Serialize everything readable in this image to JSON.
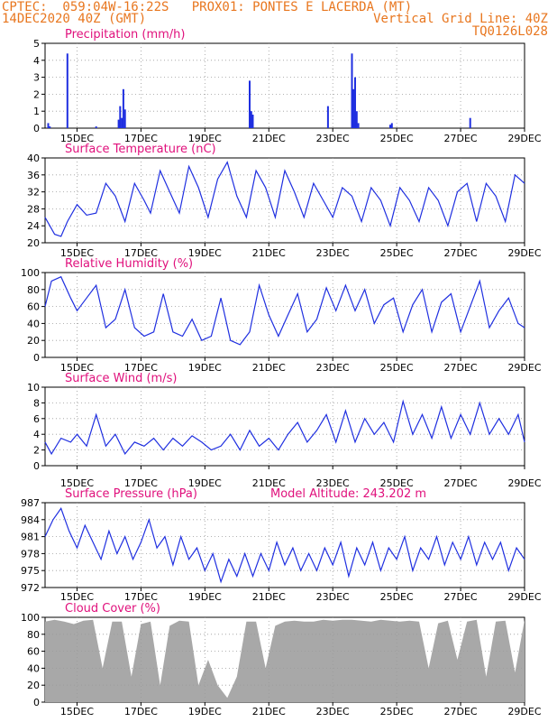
{
  "header": {
    "line1_left": "CPTEC:  059:04W-16:22S   PROX01: PONTES E LACERDA (MT)",
    "line2_left": "14DEC2020 40Z (GMT)",
    "line2_right": "Vertical Grid Line: 40Z",
    "line3_right": "TQ0126L028"
  },
  "colors": {
    "header": "#e8761e",
    "title": "#e0107c",
    "line": "#1f2fe0",
    "bar": "#1f2fe0",
    "cloud": "#a8a8a8",
    "grid": "#9a9a9a"
  },
  "x_axis": {
    "tick_labels": [
      "15DEC",
      "17DEC",
      "19DEC",
      "21DEC",
      "23DEC",
      "25DEC",
      "27DEC",
      "29DEC"
    ],
    "tick_days": [
      15,
      17,
      19,
      21,
      23,
      25,
      27,
      29
    ],
    "range_days": [
      14.0,
      29.0
    ]
  },
  "chart_data": [
    {
      "type": "bar",
      "title": "Precipitation (mm/h)",
      "ylim": [
        0,
        5
      ],
      "yticks": [
        "0",
        "1",
        "2",
        "3",
        "4",
        "5"
      ],
      "x": [
        14.1,
        14.15,
        14.7,
        15.6,
        16.3,
        16.35,
        16.4,
        16.45,
        16.5,
        20.4,
        20.45,
        20.5,
        22.85,
        23.6,
        23.65,
        23.7,
        23.75,
        23.8,
        24.8,
        24.85,
        27.3
      ],
      "values": [
        0.3,
        0.1,
        4.4,
        0.1,
        0.5,
        1.3,
        0.6,
        2.3,
        1.1,
        2.8,
        1.0,
        0.8,
        1.3,
        4.4,
        2.3,
        3.0,
        1.0,
        0.3,
        0.2,
        0.3,
        0.6
      ]
    },
    {
      "type": "line",
      "title": "Surface Temperature (nC)",
      "ylim": [
        20,
        40
      ],
      "yticks": [
        "20",
        "24",
        "28",
        "32",
        "36",
        "40"
      ],
      "x": [
        14.0,
        14.3,
        14.5,
        14.7,
        15.0,
        15.3,
        15.6,
        15.9,
        16.2,
        16.5,
        16.8,
        17.1,
        17.3,
        17.6,
        17.9,
        18.2,
        18.5,
        18.8,
        19.1,
        19.4,
        19.7,
        20.0,
        20.3,
        20.6,
        20.9,
        21.2,
        21.5,
        21.8,
        22.1,
        22.4,
        22.7,
        23.0,
        23.3,
        23.6,
        23.9,
        24.2,
        24.5,
        24.8,
        25.1,
        25.4,
        25.7,
        26.0,
        26.3,
        26.6,
        26.9,
        27.2,
        27.5,
        27.8,
        28.1,
        28.4,
        28.7,
        29.0
      ],
      "values": [
        26,
        22,
        21.5,
        25,
        29,
        26.5,
        27,
        34,
        31,
        25,
        34,
        30,
        27,
        37,
        32,
        27,
        38,
        33,
        26,
        35,
        39,
        31,
        26,
        37,
        33,
        26,
        37,
        32,
        26,
        34,
        30,
        26,
        33,
        31,
        25,
        33,
        30,
        24,
        33,
        30,
        25,
        33,
        30,
        24,
        32,
        34,
        25,
        34,
        31,
        25,
        36,
        34
      ]
    },
    {
      "type": "line",
      "title": "Relative Humidity (%)",
      "ylim": [
        0,
        100
      ],
      "yticks": [
        "0",
        "20",
        "40",
        "60",
        "80",
        "100"
      ],
      "x": [
        14.0,
        14.2,
        14.5,
        14.8,
        15.0,
        15.3,
        15.6,
        15.9,
        16.2,
        16.5,
        16.8,
        17.1,
        17.4,
        17.7,
        18.0,
        18.3,
        18.6,
        18.9,
        19.2,
        19.5,
        19.8,
        20.1,
        20.4,
        20.7,
        21.0,
        21.3,
        21.6,
        21.9,
        22.2,
        22.5,
        22.8,
        23.1,
        23.4,
        23.7,
        24.0,
        24.3,
        24.6,
        24.9,
        25.2,
        25.5,
        25.8,
        26.1,
        26.4,
        26.7,
        27.0,
        27.3,
        27.6,
        27.9,
        28.2,
        28.5,
        28.8,
        29.0
      ],
      "values": [
        60,
        90,
        95,
        70,
        55,
        70,
        85,
        35,
        45,
        80,
        35,
        25,
        30,
        75,
        30,
        25,
        45,
        20,
        25,
        70,
        20,
        15,
        30,
        85,
        50,
        25,
        50,
        75,
        30,
        45,
        82,
        55,
        85,
        55,
        80,
        40,
        62,
        70,
        30,
        62,
        80,
        30,
        65,
        75,
        30,
        60,
        90,
        35,
        55,
        70,
        40,
        35
      ]
    },
    {
      "type": "line",
      "title": "Surface Wind (m/s)",
      "ylim": [
        0,
        10
      ],
      "yticks": [
        "0",
        "2",
        "4",
        "6",
        "8",
        "10"
      ],
      "x": [
        14.0,
        14.2,
        14.5,
        14.8,
        15.0,
        15.3,
        15.6,
        15.9,
        16.2,
        16.5,
        16.8,
        17.1,
        17.4,
        17.7,
        18.0,
        18.3,
        18.6,
        18.9,
        19.2,
        19.5,
        19.8,
        20.1,
        20.4,
        20.7,
        21.0,
        21.3,
        21.6,
        21.9,
        22.2,
        22.5,
        22.8,
        23.1,
        23.4,
        23.7,
        24.0,
        24.3,
        24.6,
        24.9,
        25.2,
        25.5,
        25.8,
        26.1,
        26.4,
        26.7,
        27.0,
        27.3,
        27.6,
        27.9,
        28.2,
        28.5,
        28.8,
        29.0
      ],
      "values": [
        3,
        1.5,
        3.5,
        3,
        4,
        2.5,
        6.5,
        2.5,
        4,
        1.5,
        3,
        2.5,
        3.5,
        2,
        3.5,
        2.5,
        3.8,
        3,
        2,
        2.5,
        4,
        2,
        4.5,
        2.5,
        3.5,
        2,
        4,
        5.5,
        3,
        4.5,
        6.5,
        3,
        7,
        3,
        6,
        4,
        5.5,
        3,
        8.2,
        4,
        6.5,
        3.5,
        7.5,
        3.5,
        6.5,
        4,
        8,
        4,
        6,
        4,
        6.5,
        3
      ]
    },
    {
      "type": "line",
      "title": "Surface Pressure (hPa)",
      "annotation": "Model Altitude: 243.202 m",
      "ylim": [
        972,
        987
      ],
      "yticks": [
        "972",
        "975",
        "978",
        "981",
        "984",
        "987"
      ],
      "x": [
        14.0,
        14.25,
        14.5,
        14.75,
        15.0,
        15.25,
        15.5,
        15.75,
        16.0,
        16.25,
        16.5,
        16.75,
        17.0,
        17.25,
        17.5,
        17.75,
        18.0,
        18.25,
        18.5,
        18.75,
        19.0,
        19.25,
        19.5,
        19.75,
        20.0,
        20.25,
        20.5,
        20.75,
        21.0,
        21.25,
        21.5,
        21.75,
        22.0,
        22.25,
        22.5,
        22.75,
        23.0,
        23.25,
        23.5,
        23.75,
        24.0,
        24.25,
        24.5,
        24.75,
        25.0,
        25.25,
        25.5,
        25.75,
        26.0,
        26.25,
        26.5,
        26.75,
        27.0,
        27.25,
        27.5,
        27.75,
        28.0,
        28.25,
        28.5,
        28.75,
        29.0
      ],
      "values": [
        981,
        984,
        986,
        982,
        979,
        983,
        980,
        977,
        982,
        978,
        981,
        977,
        980,
        984,
        979,
        981,
        976,
        981,
        977,
        979,
        975,
        978,
        973,
        977,
        974,
        978,
        974,
        978,
        975,
        980,
        976,
        979,
        975,
        978,
        975,
        979,
        976,
        980,
        974,
        979,
        976,
        980,
        975,
        979,
        977,
        981,
        975,
        979,
        977,
        981,
        976,
        980,
        977,
        981,
        976,
        980,
        977,
        980,
        975,
        979,
        977
      ]
    },
    {
      "type": "area",
      "title": "Cloud Cover (%)",
      "ylim": [
        0,
        100
      ],
      "yticks": [
        "0",
        "20",
        "40",
        "60",
        "80",
        "100"
      ],
      "x": [
        14.0,
        14.3,
        14.6,
        14.9,
        15.2,
        15.5,
        15.8,
        16.1,
        16.4,
        16.7,
        17.0,
        17.3,
        17.6,
        17.9,
        18.2,
        18.5,
        18.8,
        19.1,
        19.4,
        19.7,
        20.0,
        20.3,
        20.6,
        20.9,
        21.2,
        21.5,
        21.8,
        22.1,
        22.4,
        22.7,
        23.0,
        23.3,
        23.6,
        23.9,
        24.2,
        24.5,
        24.8,
        25.1,
        25.4,
        25.7,
        26.0,
        26.3,
        26.6,
        26.9,
        27.2,
        27.5,
        27.8,
        28.1,
        28.4,
        28.7,
        29.0
      ],
      "values": [
        95,
        97,
        95,
        92,
        96,
        97,
        40,
        95,
        95,
        30,
        92,
        95,
        20,
        90,
        96,
        95,
        20,
        50,
        20,
        5,
        30,
        95,
        95,
        40,
        90,
        95,
        96,
        95,
        95,
        97,
        96,
        97,
        97,
        96,
        95,
        97,
        96,
        95,
        96,
        95,
        40,
        93,
        96,
        50,
        95,
        97,
        30,
        95,
        96,
        35,
        97
      ]
    }
  ]
}
